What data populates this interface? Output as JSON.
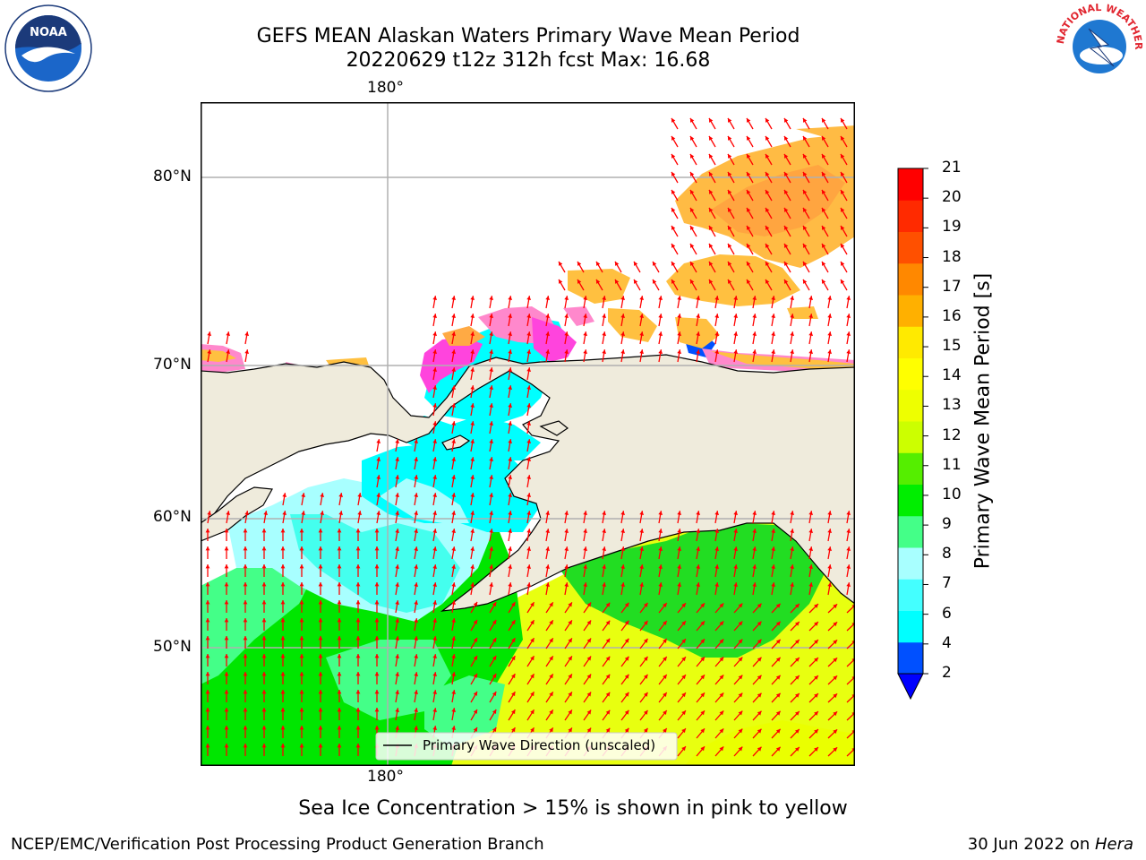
{
  "title": "GEFS MEAN Alaskan Waters Primary Wave Mean Period",
  "subtitle": "20220629 t12z 312h fcst   Max: 16.68",
  "map": {
    "lon_labels": [
      "180°",
      "180°"
    ],
    "lat_labels": [
      "80°N",
      "70°N",
      "60°N",
      "50°N"
    ],
    "legend": "Primary Wave Direction (unscaled)",
    "land_color": "#efebdc",
    "grid_color": "#b0b0b0",
    "arrow_color": "#ff0000"
  },
  "colorbar": {
    "label": "Primary Wave Mean Period [s]",
    "ticks": [
      "2",
      "4",
      "6",
      "7",
      "8",
      "9",
      "10",
      "11",
      "12",
      "13",
      "14",
      "15",
      "16",
      "17",
      "18",
      "19",
      "20",
      "21"
    ],
    "colors": [
      "#0050ff",
      "#00ffff",
      "#44ffff",
      "#a8ffff",
      "#44ff88",
      "#00ee00",
      "#55ee00",
      "#ccff00",
      "#eeff00",
      "#ffff00",
      "#ffea00",
      "#ffb000",
      "#ff8800",
      "#ff5000",
      "#ff2a00",
      "#ff0000"
    ],
    "extend_color": "#0000ff"
  },
  "caption": "Sea Ice Concentration > 15% is shown in pink to yellow",
  "footer_left": "NCEP/EMC/Verification Post Processing Product Generation Branch",
  "footer_right_prefix": "30 Jun 2022 on ",
  "footer_right_host": "Hera",
  "logos": {
    "noaa": "NOAA",
    "nws": "NATIONAL WEATHER SERVICE"
  }
}
